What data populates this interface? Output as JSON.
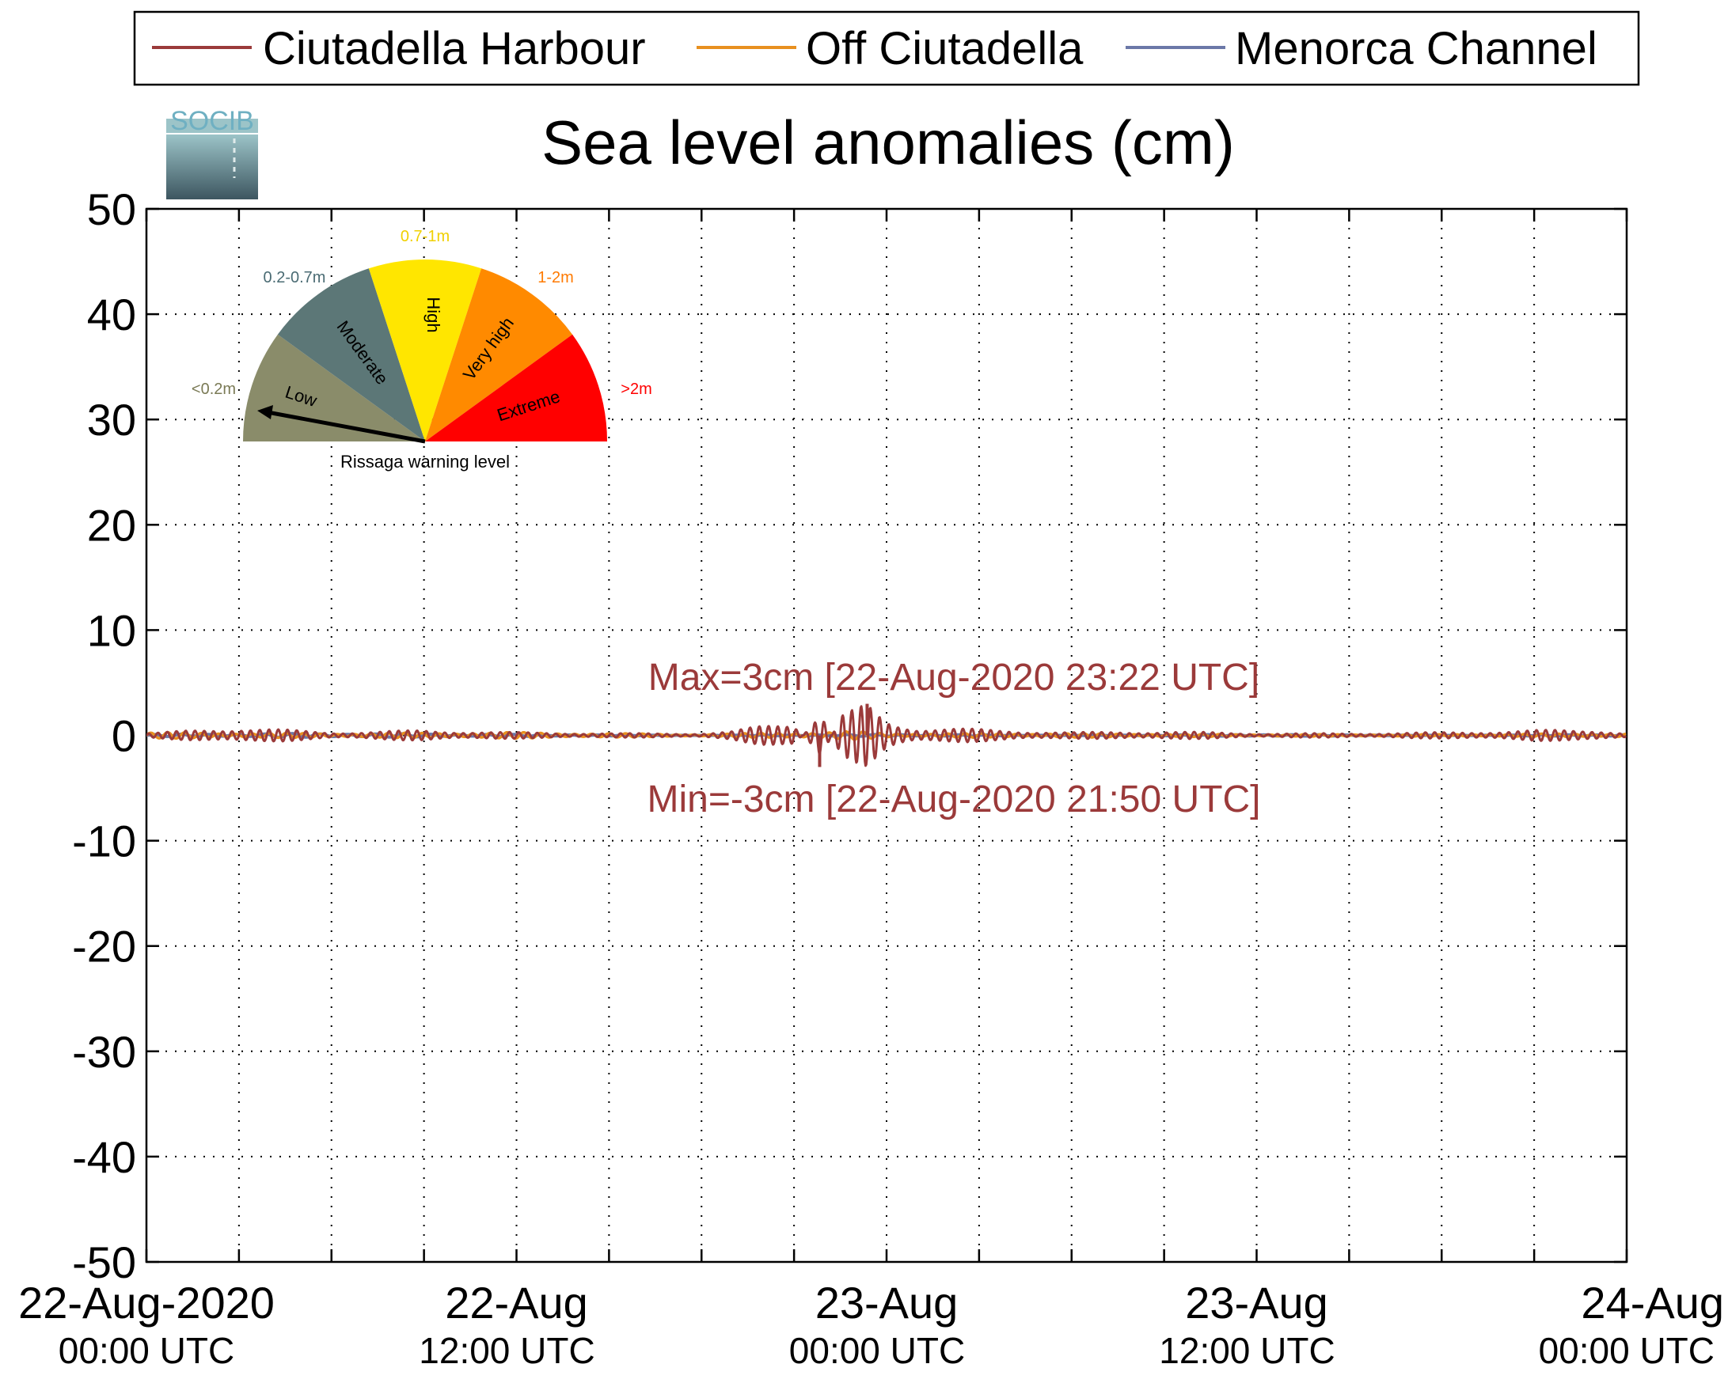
{
  "chart_data": {
    "type": "line",
    "title": "Sea level anomalies (cm)",
    "logo_text": "SOCIB",
    "ylim": [
      -50,
      50
    ],
    "yticks": [
      50,
      40,
      30,
      20,
      10,
      0,
      -10,
      -20,
      -30,
      -40,
      -50
    ],
    "y_tick_labels": [
      "50",
      "40",
      "30",
      "20",
      "10",
      "0",
      "-10",
      "-20",
      "-30",
      "-40",
      "-50"
    ],
    "xlim": [
      "2020-08-22 00:00",
      "2020-08-24 00:00"
    ],
    "x_major_ticks_hours": [
      0,
      12,
      24,
      36,
      48
    ],
    "x_minor_tick_step_hours": 3,
    "x_tick_labels": [
      {
        "line1": "22-Aug-2020",
        "line2": "00:00 UTC"
      },
      {
        "line1": "22-Aug",
        "line2": "12:00 UTC"
      },
      {
        "line1": "23-Aug",
        "line2": "00:00 UTC"
      },
      {
        "line1": "23-Aug",
        "line2": "12:00 UTC"
      },
      {
        "line1": "24-Aug",
        "line2": "00:00 UTC"
      }
    ],
    "grid": true,
    "legend": {
      "placement": "top, outside plot"
    },
    "series": [
      {
        "name": "Ciutadella Harbour",
        "color": "#9b3a3a",
        "x_hours": [
          0,
          3,
          6,
          9,
          12,
          15,
          18,
          19,
          20,
          21,
          21.83,
          22.5,
          23.37,
          24,
          25,
          27,
          30,
          33,
          36,
          39,
          42,
          45,
          47,
          48
        ],
        "y_cm": [
          0.2,
          0.8,
          0.3,
          0.5,
          0.3,
          0.2,
          0.2,
          0.4,
          1.0,
          1.5,
          -3,
          2.0,
          3,
          1.5,
          0.8,
          0.6,
          0.3,
          0.4,
          0.2,
          0.2,
          0.3,
          0.5,
          0.6,
          0.2
        ]
      },
      {
        "name": "Off Ciutadella",
        "color": "#e8901f",
        "x_hours": [
          0,
          6,
          12,
          18,
          21,
          23,
          24,
          30,
          36,
          42,
          48
        ],
        "y_cm": [
          0.3,
          0.2,
          0.3,
          0.1,
          0.3,
          0.4,
          0.2,
          0.2,
          0.1,
          0.1,
          0.2
        ]
      },
      {
        "name": "Menorca Channel",
        "color": "#6b78a8",
        "x_hours": [
          0,
          6,
          12,
          18,
          24,
          30,
          36,
          42,
          48
        ],
        "y_cm": [
          0.1,
          0.2,
          0.1,
          0.0,
          0.1,
          0.0,
          -0.1,
          0.0,
          0.1
        ]
      }
    ],
    "annotations": [
      {
        "text": "Max=3cm [22-Aug-2020 23:22 UTC]",
        "color": "#9b3a3a"
      },
      {
        "text": "Min=-3cm [22-Aug-2020 21:50 UTC]",
        "color": "#9b3a3a"
      }
    ],
    "gauge": {
      "caption": "Rissaga warning level",
      "current_level": "Low",
      "segments": [
        {
          "label": "Low",
          "range": "<0.2m",
          "color": "#8a8c6a"
        },
        {
          "label": "Moderate",
          "range": "0.2-0.7m",
          "color": "#5c7777"
        },
        {
          "label": "High",
          "range": "0.7-1m",
          "color": "#ffe600"
        },
        {
          "label": "Very high",
          "range": "1-2m",
          "color": "#ff8a00"
        },
        {
          "label": "Extreme",
          "range": ">2m",
          "color": "#ff0000"
        }
      ],
      "range_label_colors": [
        "#7a7a55",
        "#4a6b73",
        "#f0d000",
        "#ff7a00",
        "#ff0000"
      ]
    }
  }
}
